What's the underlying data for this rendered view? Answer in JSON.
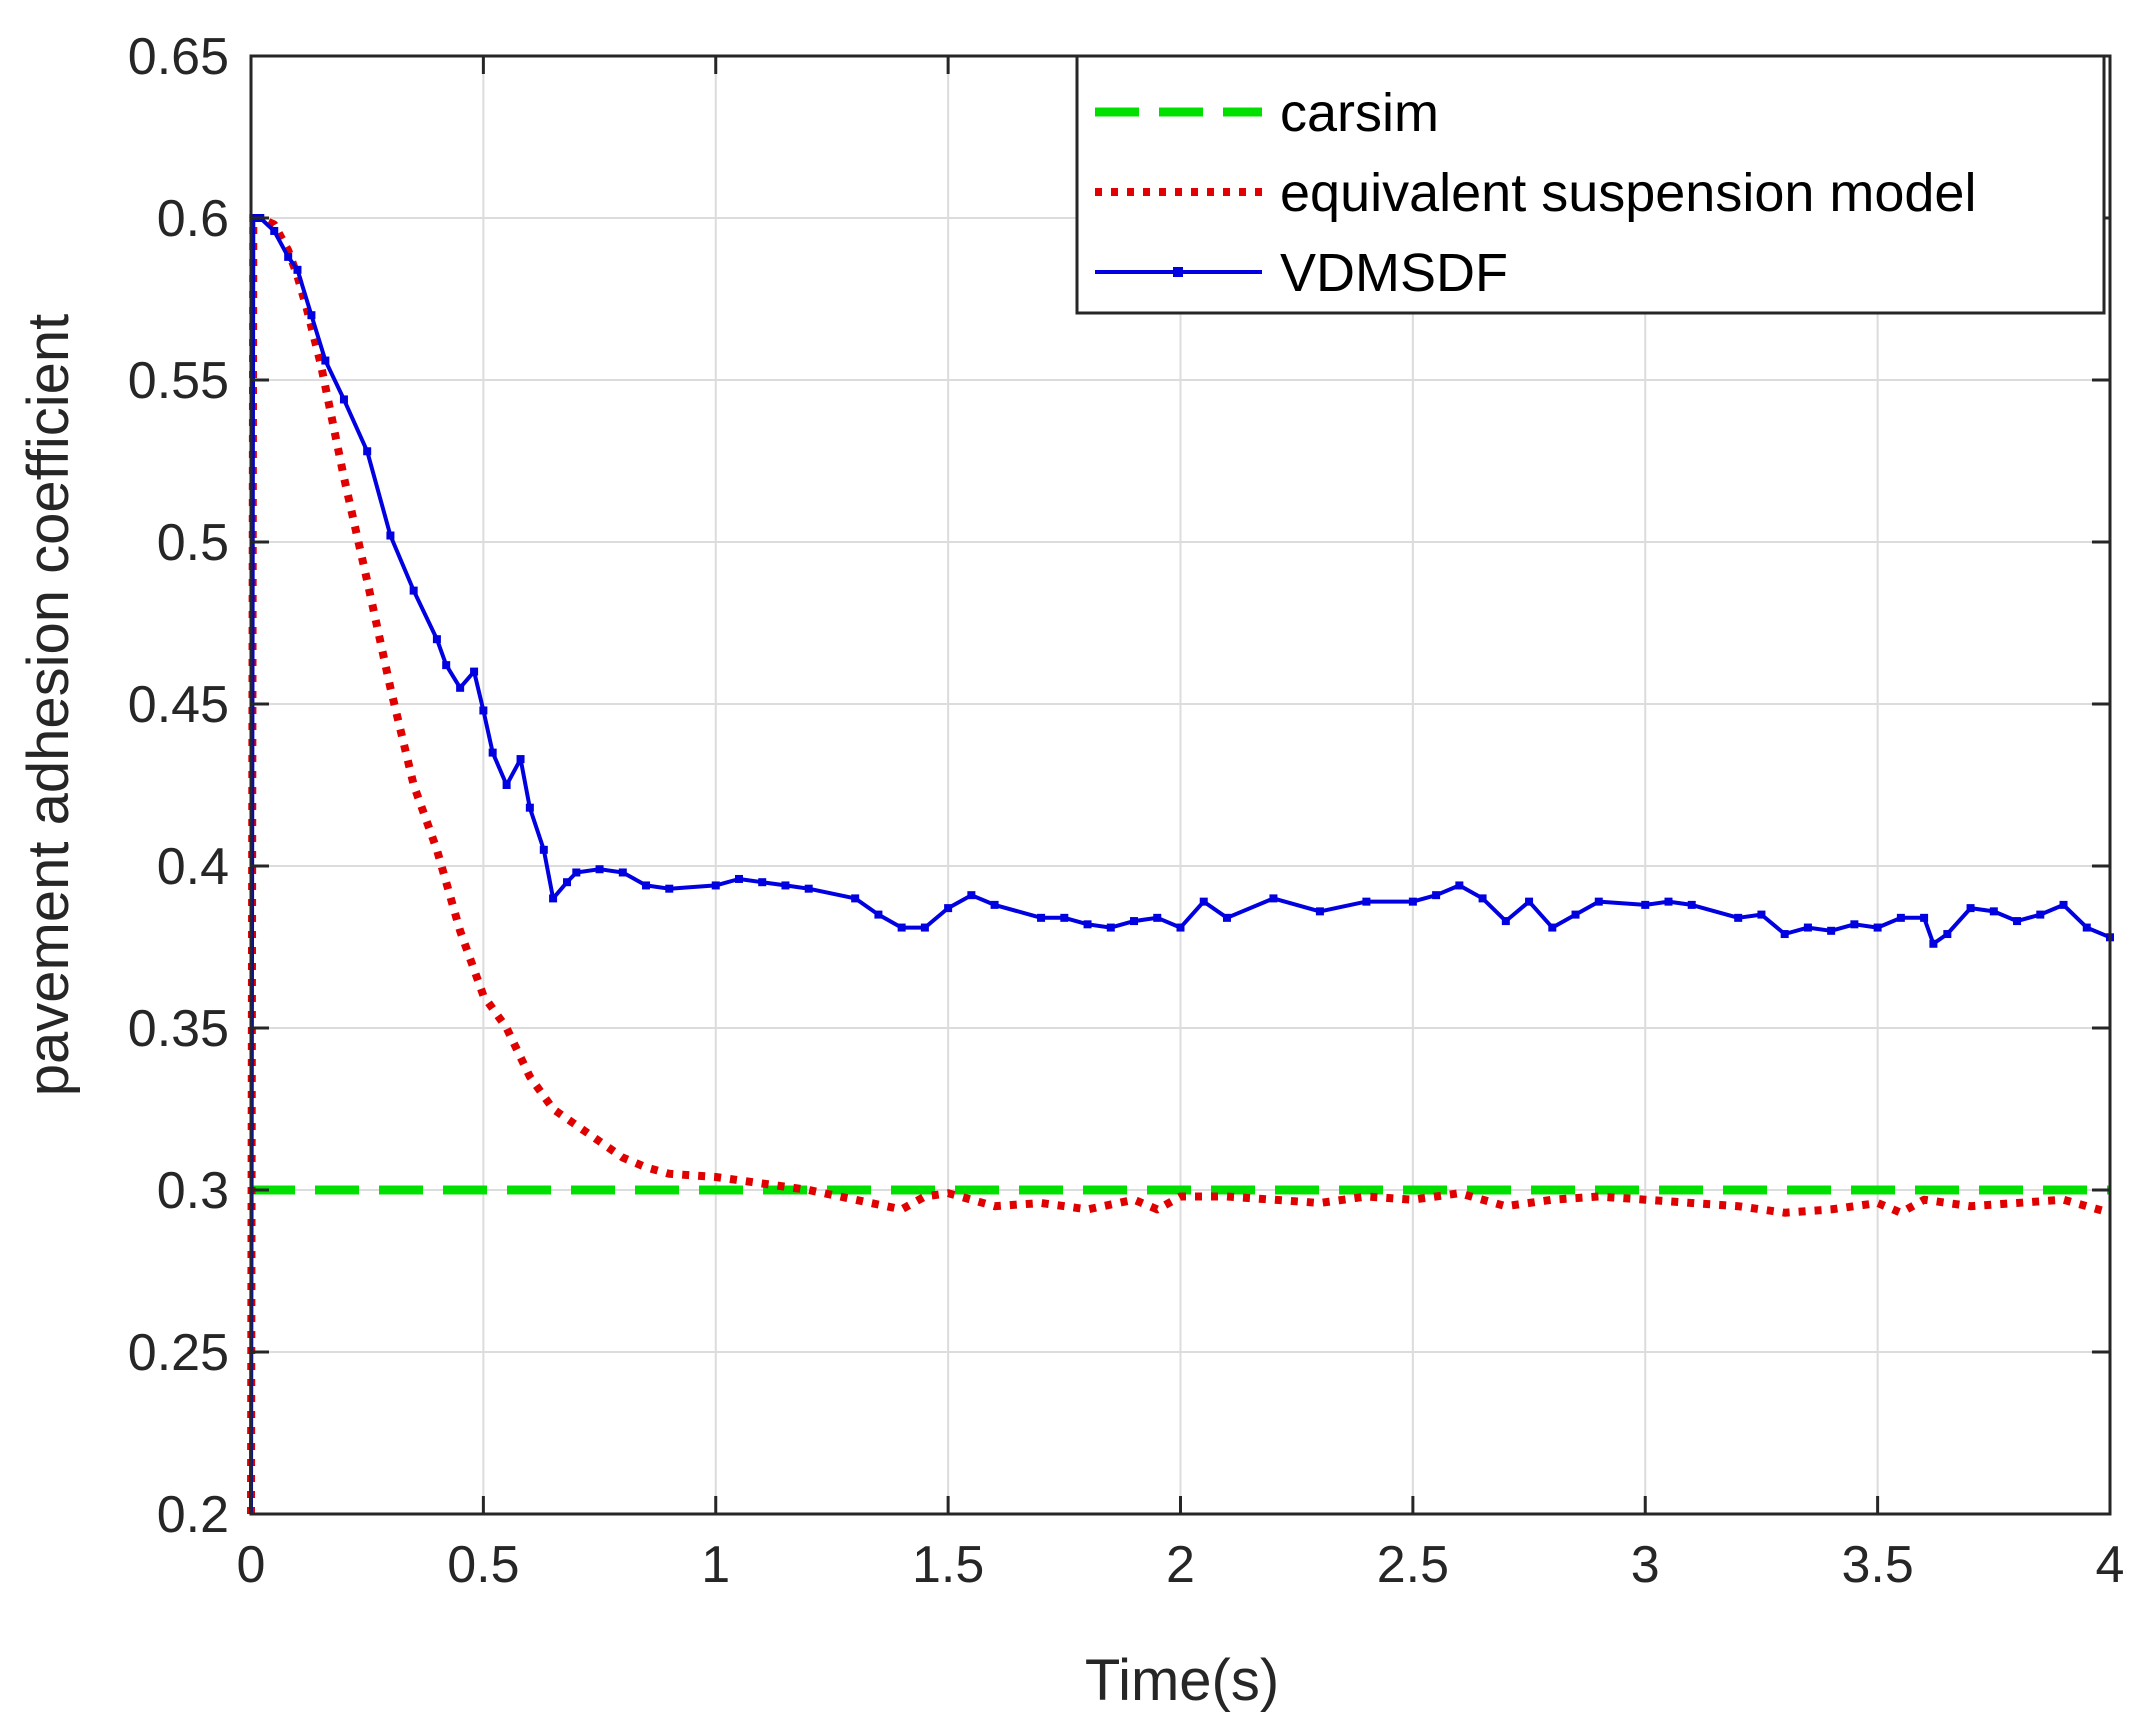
{
  "chart_data": {
    "type": "line",
    "title": "",
    "xlabel": "Time(s)",
    "ylabel": "pavement adhesion coefficient",
    "xlim": [
      0,
      4
    ],
    "ylim": [
      0.2,
      0.65
    ],
    "xticks": [
      0,
      0.5,
      1,
      1.5,
      2,
      2.5,
      3,
      3.5,
      4
    ],
    "xtick_labels": [
      "0",
      "0.5",
      "1",
      "1.5",
      "2",
      "2.5",
      "3",
      "3.5",
      "4"
    ],
    "yticks": [
      0.2,
      0.25,
      0.3,
      0.35,
      0.4,
      0.45,
      0.5,
      0.55,
      0.6,
      0.65
    ],
    "ytick_labels": [
      "0.2",
      "0.25",
      "0.3",
      "0.35",
      "0.4",
      "0.45",
      "0.5",
      "0.55",
      "0.6",
      "0.65"
    ],
    "grid": true,
    "legend_position": "top-right",
    "series": [
      {
        "name": "carsim",
        "color": "#00e000",
        "style": "dashed",
        "x": [
          0,
          4
        ],
        "y": [
          0.3,
          0.3
        ]
      },
      {
        "name": "equivalent suspension model",
        "color": "#e00000",
        "style": "dotted",
        "x": [
          0,
          0.005,
          0.02,
          0.05,
          0.08,
          0.1,
          0.12,
          0.15,
          0.2,
          0.25,
          0.3,
          0.35,
          0.4,
          0.45,
          0.5,
          0.55,
          0.6,
          0.65,
          0.7,
          0.75,
          0.8,
          0.85,
          0.9,
          1.0,
          1.1,
          1.2,
          1.3,
          1.4,
          1.45,
          1.5,
          1.55,
          1.6,
          1.7,
          1.8,
          1.9,
          1.95,
          2.0,
          2.1,
          2.2,
          2.3,
          2.4,
          2.5,
          2.6,
          2.7,
          2.8,
          2.9,
          3.0,
          3.1,
          3.2,
          3.3,
          3.4,
          3.5,
          3.55,
          3.6,
          3.7,
          3.8,
          3.9,
          4.0
        ],
        "y": [
          0.2,
          0.6,
          0.6,
          0.598,
          0.59,
          0.582,
          0.572,
          0.555,
          0.52,
          0.488,
          0.455,
          0.425,
          0.405,
          0.38,
          0.36,
          0.35,
          0.335,
          0.325,
          0.32,
          0.315,
          0.31,
          0.307,
          0.305,
          0.304,
          0.302,
          0.3,
          0.297,
          0.294,
          0.298,
          0.299,
          0.297,
          0.295,
          0.296,
          0.294,
          0.297,
          0.294,
          0.298,
          0.298,
          0.297,
          0.296,
          0.298,
          0.297,
          0.299,
          0.295,
          0.297,
          0.298,
          0.297,
          0.296,
          0.295,
          0.293,
          0.294,
          0.296,
          0.293,
          0.297,
          0.295,
          0.296,
          0.297,
          0.293
        ]
      },
      {
        "name": "VDMSDF",
        "color": "#0000e0",
        "style": "solid-marker",
        "x": [
          0,
          0.005,
          0.02,
          0.05,
          0.08,
          0.1,
          0.13,
          0.16,
          0.2,
          0.25,
          0.3,
          0.35,
          0.4,
          0.42,
          0.45,
          0.48,
          0.5,
          0.52,
          0.55,
          0.58,
          0.6,
          0.63,
          0.65,
          0.68,
          0.7,
          0.75,
          0.8,
          0.85,
          0.9,
          1.0,
          1.05,
          1.1,
          1.15,
          1.2,
          1.3,
          1.35,
          1.4,
          1.45,
          1.5,
          1.55,
          1.6,
          1.7,
          1.75,
          1.8,
          1.85,
          1.9,
          1.95,
          2.0,
          2.05,
          2.1,
          2.2,
          2.3,
          2.4,
          2.5,
          2.55,
          2.6,
          2.65,
          2.7,
          2.75,
          2.8,
          2.85,
          2.9,
          3.0,
          3.05,
          3.1,
          3.2,
          3.25,
          3.3,
          3.35,
          3.4,
          3.45,
          3.5,
          3.55,
          3.6,
          3.62,
          3.65,
          3.7,
          3.75,
          3.8,
          3.85,
          3.9,
          3.95,
          4.0
        ],
        "y": [
          0.2,
          0.6,
          0.6,
          0.596,
          0.588,
          0.584,
          0.57,
          0.556,
          0.544,
          0.528,
          0.502,
          0.485,
          0.47,
          0.462,
          0.455,
          0.46,
          0.448,
          0.435,
          0.425,
          0.433,
          0.418,
          0.405,
          0.39,
          0.395,
          0.398,
          0.399,
          0.398,
          0.394,
          0.393,
          0.394,
          0.396,
          0.395,
          0.394,
          0.393,
          0.39,
          0.385,
          0.381,
          0.381,
          0.387,
          0.391,
          0.388,
          0.384,
          0.384,
          0.382,
          0.381,
          0.383,
          0.384,
          0.381,
          0.389,
          0.384,
          0.39,
          0.386,
          0.389,
          0.389,
          0.391,
          0.394,
          0.39,
          0.383,
          0.389,
          0.381,
          0.385,
          0.389,
          0.388,
          0.389,
          0.388,
          0.384,
          0.385,
          0.379,
          0.381,
          0.38,
          0.382,
          0.381,
          0.384,
          0.384,
          0.376,
          0.379,
          0.387,
          0.386,
          0.383,
          0.385,
          0.388,
          0.381,
          0.378
        ]
      }
    ]
  }
}
